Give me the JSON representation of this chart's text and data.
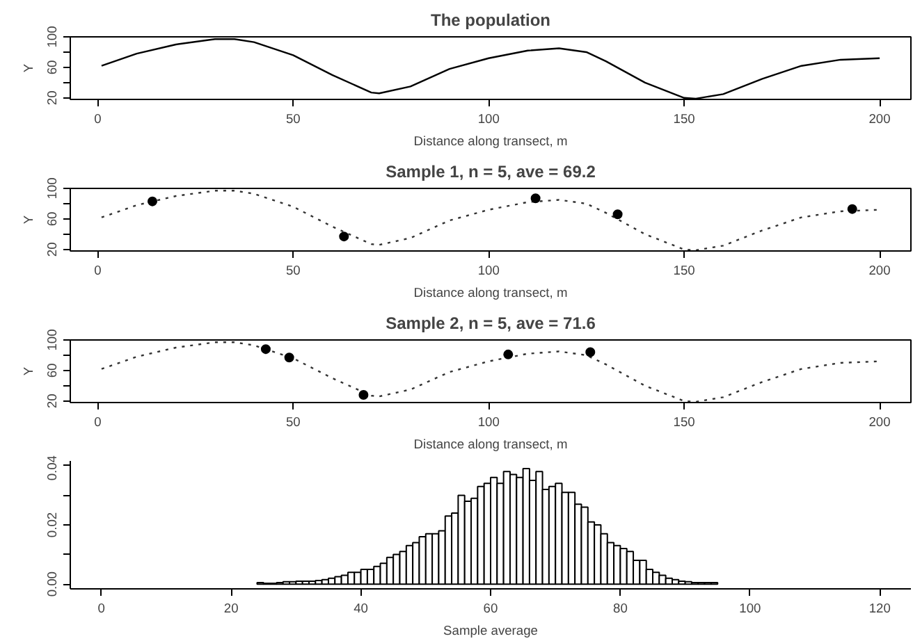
{
  "chart_data": [
    {
      "type": "line",
      "title": "The population",
      "xlabel": "Distance along transect, m",
      "ylabel": "Y",
      "x": [
        1,
        10,
        20,
        30,
        35,
        40,
        50,
        60,
        70,
        72,
        80,
        90,
        100,
        110,
        118,
        125,
        130,
        140,
        150,
        153,
        160,
        170,
        180,
        190,
        200
      ],
      "series": [
        {
          "color": "#000000",
          "values": [
            62,
            78,
            90,
            97,
            97,
            93,
            76,
            50,
            27,
            26,
            35,
            58,
            72,
            82,
            85,
            80,
            68,
            40,
            20,
            19,
            25,
            45,
            62,
            70,
            72
          ]
        }
      ],
      "line_style": "solid",
      "xlim": [
        -7,
        208
      ],
      "ylim": [
        18,
        100
      ],
      "xticks": [
        0,
        50,
        100,
        150,
        200
      ],
      "yticks": [
        20,
        {
          "value": 40,
          "label": null
        },
        60,
        {
          "value": 80,
          "label": null
        },
        100
      ]
    },
    {
      "type": "line",
      "title": "Sample 1, n = 5, ave = 69.2",
      "xlabel": "Distance along transect, m",
      "ylabel": "Y",
      "x": [
        1,
        10,
        20,
        30,
        35,
        40,
        50,
        60,
        70,
        72,
        80,
        90,
        100,
        110,
        118,
        125,
        130,
        140,
        150,
        153,
        160,
        170,
        180,
        190,
        200
      ],
      "series": [
        {
          "color": "#333333",
          "line_style": "dotted",
          "values": [
            62,
            78,
            90,
            97,
            97,
            93,
            76,
            50,
            27,
            26,
            35,
            58,
            72,
            82,
            85,
            80,
            68,
            40,
            20,
            19,
            25,
            45,
            62,
            70,
            72
          ]
        },
        {
          "type": "scatter",
          "color": "#000000",
          "marker": "circle",
          "x": [
            14,
            63,
            112,
            133,
            193
          ],
          "values": [
            83,
            37,
            87,
            66,
            73
          ]
        }
      ],
      "xlim": [
        -7,
        208
      ],
      "ylim": [
        18,
        100
      ],
      "xticks": [
        0,
        50,
        100,
        150,
        200
      ],
      "yticks": [
        20,
        {
          "value": 40,
          "label": null
        },
        60,
        {
          "value": 80,
          "label": null
        },
        100
      ]
    },
    {
      "type": "line",
      "title": "Sample 2, n = 5, ave = 71.6",
      "xlabel": "Distance along transect, m",
      "ylabel": "Y",
      "x": [
        1,
        10,
        20,
        30,
        35,
        40,
        50,
        60,
        70,
        72,
        80,
        90,
        100,
        110,
        118,
        125,
        130,
        140,
        150,
        153,
        160,
        170,
        180,
        190,
        200
      ],
      "series": [
        {
          "color": "#333333",
          "line_style": "dotted",
          "values": [
            62,
            78,
            90,
            97,
            97,
            93,
            76,
            50,
            27,
            26,
            35,
            58,
            72,
            82,
            85,
            80,
            68,
            40,
            20,
            19,
            25,
            45,
            62,
            70,
            72
          ]
        },
        {
          "type": "scatter",
          "color": "#000000",
          "marker": "circle",
          "x": [
            43,
            49,
            68,
            105,
            126
          ],
          "values": [
            88,
            77,
            28,
            81,
            84
          ]
        }
      ],
      "xlim": [
        -7,
        208
      ],
      "ylim": [
        18,
        100
      ],
      "xticks": [
        0,
        50,
        100,
        150,
        200
      ],
      "yticks": [
        20,
        {
          "value": 40,
          "label": null
        },
        60,
        {
          "value": 80,
          "label": null
        },
        100
      ]
    },
    {
      "type": "histogram",
      "xlabel": "Sample average",
      "color": "#ffffff",
      "bins": [
        24,
        25,
        26,
        27,
        28,
        29,
        30,
        31,
        32,
        33,
        34,
        35,
        36,
        37,
        38,
        39,
        40,
        41,
        42,
        43,
        44,
        45,
        46,
        47,
        48,
        49,
        50,
        51,
        52,
        53,
        54,
        55,
        56,
        57,
        58,
        59,
        60,
        61,
        62,
        63,
        64,
        65,
        66,
        67,
        68,
        69,
        70,
        71,
        72,
        73,
        74,
        75,
        76,
        77,
        78,
        79,
        80,
        81,
        82,
        83,
        84,
        85,
        86,
        87,
        88,
        89,
        90,
        91,
        92,
        93,
        94,
        95
      ],
      "values": [
        0.0005,
        0.0003,
        0.0003,
        0.0005,
        0.0008,
        0.0008,
        0.001,
        0.001,
        0.001,
        0.0012,
        0.0015,
        0.002,
        0.0025,
        0.003,
        0.004,
        0.004,
        0.005,
        0.005,
        0.006,
        0.007,
        0.009,
        0.01,
        0.011,
        0.013,
        0.014,
        0.016,
        0.017,
        0.017,
        0.018,
        0.023,
        0.024,
        0.03,
        0.028,
        0.029,
        0.033,
        0.034,
        0.036,
        0.034,
        0.038,
        0.037,
        0.036,
        0.039,
        0.035,
        0.038,
        0.032,
        0.033,
        0.034,
        0.031,
        0.031,
        0.027,
        0.026,
        0.021,
        0.02,
        0.017,
        0.014,
        0.013,
        0.012,
        0.011,
        0.008,
        0.008,
        0.005,
        0.004,
        0.003,
        0.002,
        0.0015,
        0.001,
        0.0008,
        0.0005,
        0.0005,
        0.0005,
        0.0005
      ],
      "xlim": [
        -4.8,
        124.8
      ],
      "ylim": [
        -0.0016,
        0.0416
      ],
      "xticks": [
        0,
        20,
        40,
        60,
        80,
        100,
        120
      ],
      "yticks": [
        "0.00",
        {
          "value": 0.01,
          "label": null
        },
        {
          "value": 0.02,
          "label": "0.02"
        },
        {
          "value": 0.03,
          "label": null
        },
        {
          "value": 0.04,
          "label": "0.04"
        }
      ]
    }
  ]
}
